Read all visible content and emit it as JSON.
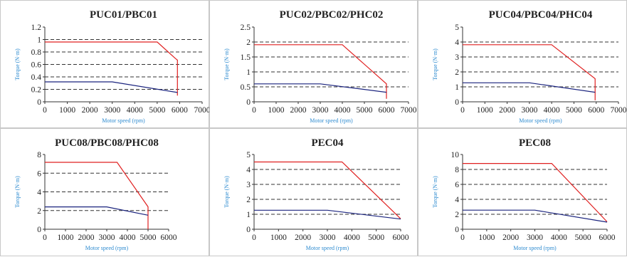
{
  "chart_data": [
    {
      "type": "line",
      "title": "PUC01/PBC01",
      "xlabel": "Motor speed (rpm)",
      "ylabel": "Torque (N·m)",
      "xlim": [
        0,
        7000
      ],
      "ylim": [
        0,
        1.2
      ],
      "xticks": [
        0,
        1000,
        2000,
        3000,
        4000,
        5000,
        6000,
        7000
      ],
      "yticks": [
        0,
        0.2,
        0.4,
        0.6,
        0.8,
        1,
        1.2
      ],
      "ytick_labels": [
        "0",
        "0.2",
        "0.4",
        "0.6",
        "0.8",
        "1",
        "1.2"
      ],
      "dashed_grid_y": [
        0.2,
        0.4,
        0.6,
        0.8,
        1.0
      ],
      "series": [
        {
          "color": "#e02020",
          "x": [
            0,
            5000,
            5800,
            5900,
            5900
          ],
          "y": [
            0.96,
            0.96,
            0.7,
            0.67,
            0.1
          ]
        },
        {
          "color": "#1a237e",
          "x": [
            0,
            3000,
            5900
          ],
          "y": [
            0.32,
            0.32,
            0.15
          ]
        }
      ]
    },
    {
      "type": "line",
      "title": "PUC02/PBC02/PHC02",
      "xlabel": "Motor speed (rpm)",
      "ylabel": "Torque (N·m)",
      "xlim": [
        0,
        7000
      ],
      "ylim": [
        0,
        2.5
      ],
      "xticks": [
        0,
        1000,
        2000,
        3000,
        4000,
        5000,
        6000,
        7000
      ],
      "yticks": [
        0,
        0.5,
        1,
        1.5,
        2,
        2.5
      ],
      "ytick_labels": [
        "0",
        "0.5",
        "1",
        "1.5",
        "2",
        "2.5"
      ],
      "dashed_grid_y": [
        0.5,
        1.0,
        1.5,
        2.0
      ],
      "series": [
        {
          "color": "#e02020",
          "x": [
            0,
            4000,
            6000,
            6000
          ],
          "y": [
            1.91,
            1.91,
            0.6,
            0.1
          ]
        },
        {
          "color": "#1a237e",
          "x": [
            0,
            3000,
            6000
          ],
          "y": [
            0.6,
            0.6,
            0.32
          ]
        }
      ]
    },
    {
      "type": "line",
      "title": "PUC04/PBC04/PHC04",
      "xlabel": "Motor speed (rpm)",
      "ylabel": "Torque (N·m)",
      "xlim": [
        0,
        7000
      ],
      "ylim": [
        0,
        5
      ],
      "xticks": [
        0,
        1000,
        2000,
        3000,
        4000,
        5000,
        6000,
        7000
      ],
      "yticks": [
        0,
        1,
        2,
        3,
        4,
        5
      ],
      "ytick_labels": [
        "0",
        "1",
        "2",
        "3",
        "4",
        "5"
      ],
      "dashed_grid_y": [
        1,
        2,
        3,
        4
      ],
      "series": [
        {
          "color": "#e02020",
          "x": [
            0,
            4000,
            5950,
            5950
          ],
          "y": [
            3.82,
            3.82,
            1.55,
            0.1
          ]
        },
        {
          "color": "#1a237e",
          "x": [
            0,
            3000,
            5950
          ],
          "y": [
            1.27,
            1.27,
            0.64
          ]
        }
      ]
    },
    {
      "type": "line",
      "title": "PUC08/PBC08/PHC08",
      "xlabel": "Motor speed (rpm)",
      "ylabel": "Torque (N·m)",
      "xlim": [
        0,
        6000
      ],
      "ylim": [
        0,
        8
      ],
      "xticks": [
        0,
        1000,
        2000,
        3000,
        4000,
        5000,
        6000
      ],
      "yticks": [
        0,
        2,
        4,
        6,
        8
      ],
      "ytick_labels": [
        "0",
        "2",
        "4",
        "6",
        "8"
      ],
      "dashed_grid_y": [
        2,
        4,
        6
      ],
      "series": [
        {
          "color": "#e02020",
          "x": [
            0,
            3500,
            5000,
            5000
          ],
          "y": [
            7.16,
            7.16,
            2.4,
            0
          ]
        },
        {
          "color": "#1a237e",
          "x": [
            0,
            3000,
            5000
          ],
          "y": [
            2.39,
            2.39,
            1.5
          ]
        }
      ]
    },
    {
      "type": "line",
      "title": "PEC04",
      "xlabel": "Motor speed (rpm)",
      "ylabel": "Torque (N·m)",
      "xlim": [
        0,
        6000
      ],
      "ylim": [
        0,
        5
      ],
      "xticks": [
        0,
        1000,
        2000,
        3000,
        4000,
        5000,
        6000
      ],
      "yticks": [
        0,
        1,
        2,
        3,
        4,
        5
      ],
      "ytick_labels": [
        "0",
        "1",
        "2",
        "3",
        "4",
        "5"
      ],
      "dashed_grid_y": [
        1,
        2,
        3,
        4
      ],
      "series": [
        {
          "color": "#e02020",
          "x": [
            0,
            3600,
            6000
          ],
          "y": [
            4.5,
            4.5,
            0.7
          ]
        },
        {
          "color": "#1a237e",
          "x": [
            0,
            3000,
            6000
          ],
          "y": [
            1.27,
            1.27,
            0.68
          ]
        }
      ]
    },
    {
      "type": "line",
      "title": "PEC08",
      "xlabel": "Motor speed (rpm)",
      "ylabel": "Torque (N·m)",
      "xlim": [
        0,
        6000
      ],
      "ylim": [
        0,
        10
      ],
      "xticks": [
        0,
        1000,
        2000,
        3000,
        4000,
        5000,
        6000
      ],
      "yticks": [
        0,
        2,
        4,
        6,
        8,
        10
      ],
      "ytick_labels": [
        "0",
        "2",
        "4",
        "6",
        "8",
        "10"
      ],
      "dashed_grid_y": [
        2,
        4,
        6,
        8
      ],
      "series": [
        {
          "color": "#e02020",
          "x": [
            0,
            3700,
            6000
          ],
          "y": [
            8.8,
            8.8,
            1.0
          ]
        },
        {
          "color": "#1a237e",
          "x": [
            0,
            3000,
            6000
          ],
          "y": [
            2.55,
            2.55,
            0.95
          ]
        }
      ]
    }
  ]
}
